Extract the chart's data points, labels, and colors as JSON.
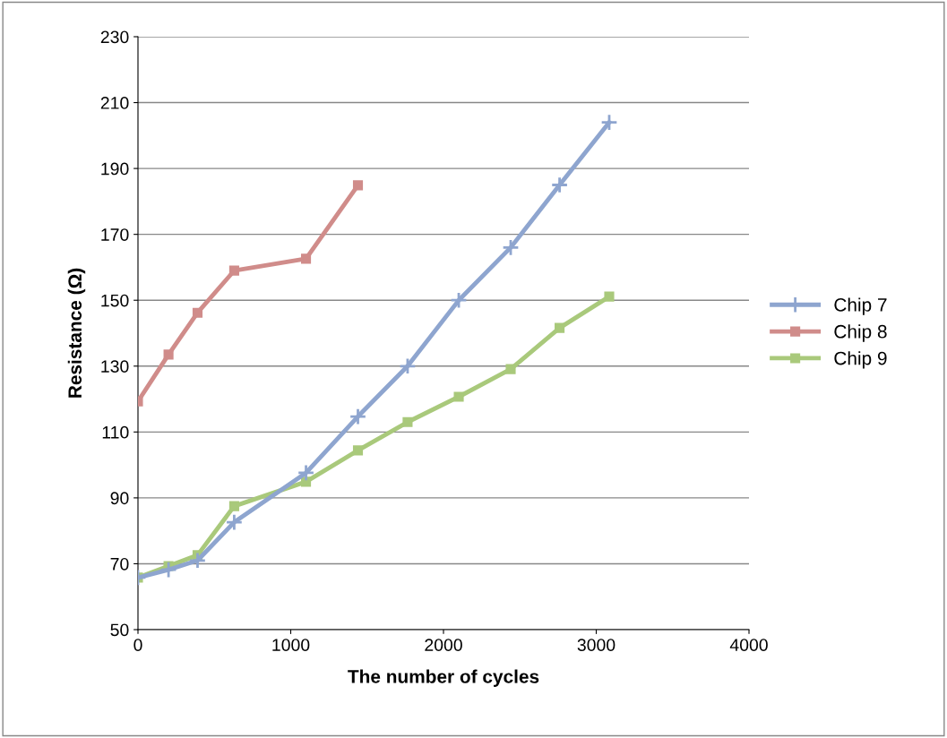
{
  "chart_data": {
    "type": "line",
    "xlabel": "The number of cycles",
    "ylabel": "Resistance (Ω)",
    "xlim": [
      0,
      4000
    ],
    "xticks": [
      0,
      1000,
      2000,
      3000,
      4000
    ],
    "ylim": [
      50,
      230
    ],
    "yticks": [
      50,
      70,
      90,
      110,
      130,
      150,
      170,
      190,
      210,
      230
    ],
    "grid": "y",
    "legend": "right",
    "line_style": "solid",
    "series": [
      {
        "name": "Chip 7",
        "color": "#8ea5cf",
        "marker": "cross",
        "x": [
          0,
          200,
          390,
          630,
          1100,
          1440,
          1765,
          2100,
          2440,
          2760,
          3085
        ],
        "values": [
          65.8,
          68.2,
          71,
          82.6,
          97.6,
          114.7,
          130,
          150,
          166,
          185,
          204
        ]
      },
      {
        "name": "Chip 8",
        "color": "#d08c8a",
        "marker": "square",
        "x": [
          0,
          200,
          390,
          630,
          1100,
          1440
        ],
        "values": [
          119.3,
          133.5,
          146.2,
          159,
          162.6,
          184.9
        ]
      },
      {
        "name": "Chip 9",
        "color": "#a9c97b",
        "marker": "square",
        "x": [
          0,
          200,
          390,
          630,
          1100,
          1440,
          1765,
          2100,
          2440,
          2760,
          3085
        ],
        "values": [
          65.8,
          69.3,
          72.6,
          87.5,
          94.9,
          104.4,
          113,
          120.7,
          129.1,
          141.6,
          151.1
        ]
      }
    ]
  }
}
